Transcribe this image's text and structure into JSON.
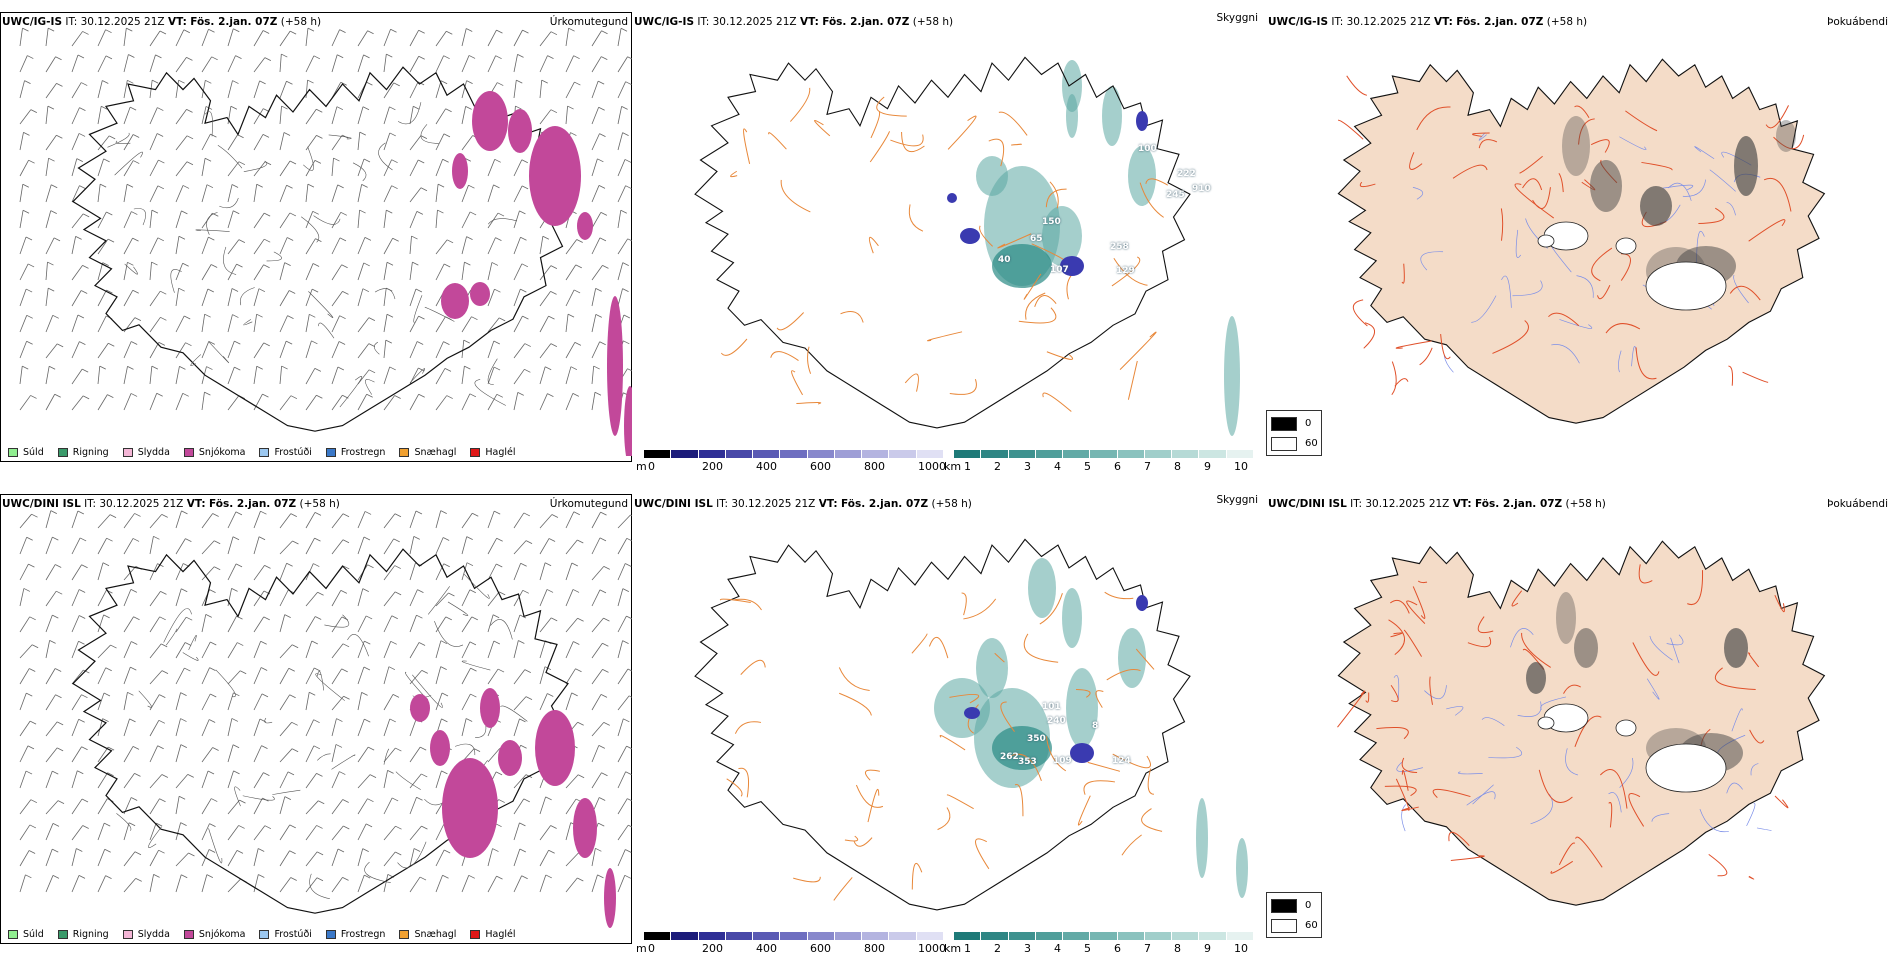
{
  "rows": [
    {
      "model": "UWC/IG-IS",
      "it": "IT: 30.12.2025 21Z",
      "vt_label": "VT:",
      "vt": "Fös. 2.jan. 07Z",
      "lead": "(+58 h)",
      "height_labels": [
        "150",
        "65",
        "107",
        "258",
        "129",
        "100",
        "222",
        "245",
        "910",
        "40"
      ]
    },
    {
      "model": "UWC/DINI ISL",
      "it": "IT: 30.12.2025 21Z",
      "vt_label": "VT:",
      "vt": "Fös. 2.jan. 07Z",
      "lead": "(+58 h)",
      "height_labels": [
        "101",
        "240",
        "350",
        "262",
        "353",
        "109",
        "124",
        "8"
      ]
    }
  ],
  "panel_titles": {
    "precip": "Úrkomutegund",
    "cloud": "Skyggni",
    "fog": "Þokuábendi"
  },
  "precip_legend": [
    {
      "label": "Súld",
      "color": "#90ee90"
    },
    {
      "label": "Rigning",
      "color": "#3a9a6a"
    },
    {
      "label": "Slydda",
      "color": "#f4b6d6"
    },
    {
      "label": "Snjókoma",
      "color": "#c2489a"
    },
    {
      "label": "Frostúði",
      "color": "#9cc8f0"
    },
    {
      "label": "Frostregn",
      "color": "#3a78c8"
    },
    {
      "label": "Snæhagl",
      "color": "#f0a030"
    },
    {
      "label": "Haglél",
      "color": "#e01818"
    }
  ],
  "height_bar": {
    "unit": "m",
    "ticks": [
      "0",
      "200",
      "400",
      "600",
      "800",
      "1000"
    ],
    "colors": [
      "#000000",
      "#1b1b7a",
      "#2e2e96",
      "#4848a8",
      "#5a5ab4",
      "#6e6ec0",
      "#8888cc",
      "#9e9ed6",
      "#b4b4e0",
      "#cacaea",
      "#e0e0f4"
    ]
  },
  "vis_bar": {
    "unit": "km",
    "ticks": [
      "1",
      "2",
      "3",
      "4",
      "5",
      "6",
      "7",
      "8",
      "9",
      "10"
    ],
    "colors": [
      "#1e7a78",
      "#2e8684",
      "#3e928f",
      "#4f9e9a",
      "#62aaa6",
      "#76b6b2",
      "#8ac2be",
      "#a0ceca",
      "#b6dad6",
      "#cce6e2",
      "#e6f2f0"
    ]
  },
  "fog_legend": [
    {
      "label": "0",
      "color": "#000000"
    },
    {
      "label": "60",
      "color": "#ffffff"
    }
  ]
}
